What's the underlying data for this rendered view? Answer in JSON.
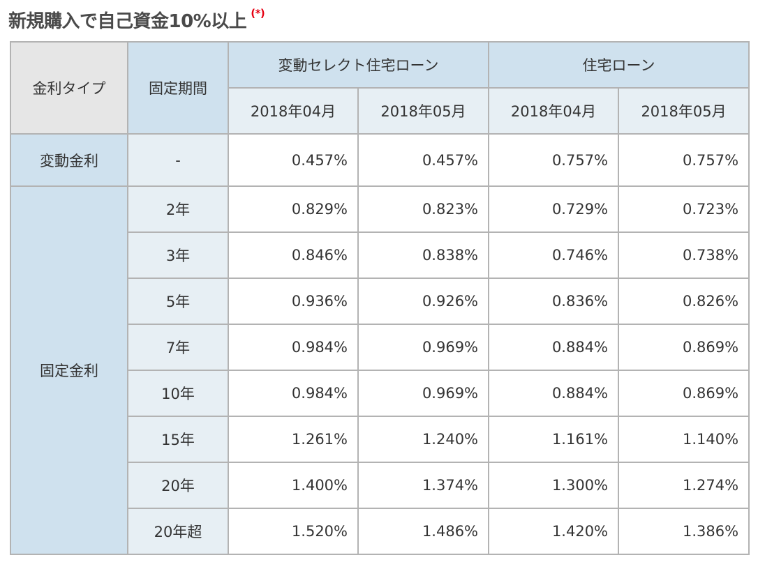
{
  "title": {
    "text": "新規購入で自己資金10%以上",
    "mark": "(*)"
  },
  "table": {
    "headers": {
      "rate_type": "金利タイプ",
      "fixed_period": "固定期間",
      "group_a": "変動セレクト住宅ローン",
      "group_b": "住宅ローン",
      "months": [
        "2018年04月",
        "2018年05月",
        "2018年04月",
        "2018年05月"
      ]
    },
    "variable": {
      "type": "変動金利",
      "period": "-",
      "values": [
        "0.457%",
        "0.457%",
        "0.757%",
        "0.757%"
      ]
    },
    "fixed": {
      "type": "固定金利",
      "rows": [
        {
          "period": "2年",
          "values": [
            "0.829%",
            "0.823%",
            "0.729%",
            "0.723%"
          ]
        },
        {
          "period": "3年",
          "values": [
            "0.846%",
            "0.838%",
            "0.746%",
            "0.738%"
          ]
        },
        {
          "period": "5年",
          "values": [
            "0.936%",
            "0.926%",
            "0.836%",
            "0.826%"
          ]
        },
        {
          "period": "7年",
          "values": [
            "0.984%",
            "0.969%",
            "0.884%",
            "0.869%"
          ]
        },
        {
          "period": "10年",
          "values": [
            "0.984%",
            "0.969%",
            "0.884%",
            "0.869%"
          ]
        },
        {
          "period": "15年",
          "values": [
            "1.261%",
            "1.240%",
            "1.161%",
            "1.140%"
          ]
        },
        {
          "period": "20年",
          "values": [
            "1.400%",
            "1.374%",
            "1.300%",
            "1.274%"
          ]
        },
        {
          "period": "20年超",
          "values": [
            "1.520%",
            "1.486%",
            "1.420%",
            "1.386%"
          ]
        }
      ]
    }
  },
  "colors": {
    "header_gray": "#e6e6e6",
    "header_blue": "#cfe1ee",
    "header_light": "#e7eff4",
    "border": "#b3b3b3",
    "title": "#4a4a4a",
    "mark": "#e60012"
  }
}
